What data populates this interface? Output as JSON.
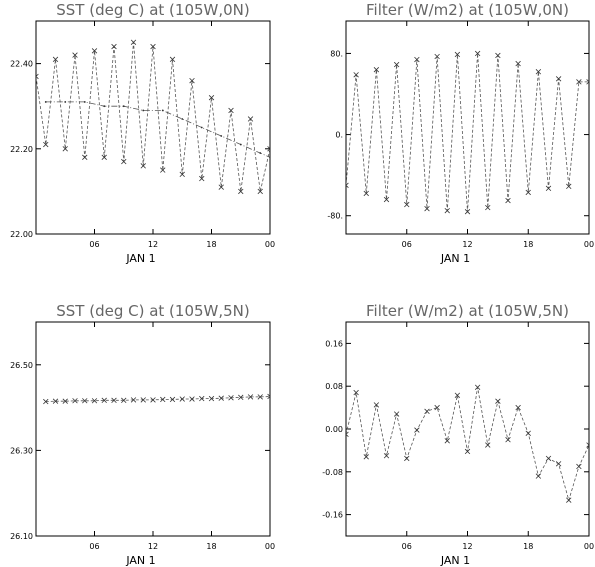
{
  "chart_data": [
    {
      "type": "line",
      "title": "SST (deg C) at (105W,0N)",
      "xlabel": "JAN  1",
      "ylabel": "",
      "x_ticks": [
        "06",
        "12",
        "18",
        "00"
      ],
      "y_ticks": [
        "22.00",
        "22.20",
        "22.40"
      ],
      "ylim": [
        22.0,
        22.5
      ],
      "xlim": [
        0,
        24
      ],
      "grid": false,
      "series": [
        {
          "style": "dashed-with-x-markers",
          "x": [
            0,
            1,
            2,
            3,
            4,
            5,
            6,
            7,
            8,
            9,
            10,
            11,
            12,
            13,
            14,
            15,
            16,
            17,
            18,
            19,
            20,
            21,
            22,
            23,
            24
          ],
          "values": [
            22.37,
            22.21,
            22.41,
            22.2,
            22.42,
            22.18,
            22.43,
            22.18,
            22.44,
            22.17,
            22.45,
            22.16,
            22.44,
            22.15,
            22.41,
            22.14,
            22.36,
            22.13,
            22.32,
            22.11,
            22.29,
            22.1,
            22.27,
            22.1,
            22.2
          ]
        },
        {
          "style": "dash-dot-with-dot-markers",
          "x": [
            1,
            3,
            5,
            7,
            9,
            11,
            13,
            15,
            17,
            19,
            21,
            23,
            24
          ],
          "values": [
            22.31,
            22.31,
            22.31,
            22.3,
            22.3,
            22.29,
            22.29,
            22.27,
            22.25,
            22.23,
            22.21,
            22.19,
            22.18
          ]
        }
      ]
    },
    {
      "type": "line",
      "title": "Filter (W/m2) at (105W,0N)",
      "xlabel": "JAN  1",
      "ylabel": "",
      "x_ticks": [
        "06",
        "12",
        "18",
        "00"
      ],
      "y_ticks": [
        "-80.",
        "0.",
        "80."
      ],
      "ylim": [
        -100,
        110
      ],
      "xlim": [
        0,
        24
      ],
      "grid": false,
      "series": [
        {
          "style": "dashed-with-x-markers",
          "x": [
            0,
            1,
            2,
            3,
            4,
            5,
            6,
            7,
            8,
            9,
            10,
            11,
            12,
            13,
            14,
            15,
            16,
            17,
            18,
            19,
            20,
            21,
            22,
            23,
            24
          ],
          "values": [
            -52,
            57,
            -60,
            62,
            -66,
            67,
            -71,
            72,
            -75,
            75,
            -77,
            77,
            -78,
            78,
            -74,
            76,
            -67,
            68,
            -59,
            60,
            -55,
            53,
            -53,
            50,
            50
          ]
        }
      ]
    },
    {
      "type": "line",
      "title": "SST (deg C) at (105W,5N)",
      "xlabel": "JAN  1",
      "ylabel": "",
      "x_ticks": [
        "06",
        "12",
        "18",
        "00"
      ],
      "y_ticks": [
        "26.10",
        "26.30",
        "26.50"
      ],
      "ylim": [
        26.1,
        26.6
      ],
      "xlim": [
        0,
        24
      ],
      "grid": false,
      "series": [
        {
          "style": "dashed-with-x-markers",
          "x": [
            1,
            2,
            3,
            4,
            5,
            6,
            7,
            8,
            9,
            10,
            11,
            12,
            13,
            14,
            15,
            16,
            17,
            18,
            19,
            20,
            21,
            22,
            23,
            24
          ],
          "values": [
            26.414,
            26.415,
            26.415,
            26.416,
            26.416,
            26.416,
            26.417,
            26.417,
            26.417,
            26.418,
            26.418,
            26.418,
            26.419,
            26.419,
            26.42,
            26.42,
            26.421,
            26.421,
            26.422,
            26.423,
            26.424,
            26.425,
            26.425,
            26.426
          ]
        }
      ]
    },
    {
      "type": "line",
      "title": "Filter (W/m2) at (105W,5N)",
      "xlabel": "JAN  1",
      "ylabel": "",
      "x_ticks": [
        "06",
        "12",
        "18",
        "00"
      ],
      "y_ticks": [
        "-0.16",
        "-0.08",
        "0.00",
        "0.08",
        "0.16"
      ],
      "ylim": [
        -0.2,
        0.2
      ],
      "xlim": [
        0,
        24
      ],
      "grid": false,
      "series": [
        {
          "style": "dashed-with-x-markers",
          "x": [
            0,
            1,
            2,
            3,
            4,
            5,
            6,
            7,
            8,
            9,
            10,
            11,
            12,
            13,
            14,
            15,
            16,
            17,
            18,
            19,
            20,
            21,
            22,
            23,
            24
          ],
          "values": [
            -0.01,
            0.068,
            -0.052,
            0.045,
            -0.05,
            0.028,
            -0.055,
            -0.002,
            0.033,
            0.04,
            -0.022,
            0.063,
            -0.042,
            0.078,
            -0.03,
            0.052,
            -0.02,
            0.04,
            -0.008,
            -0.088,
            -0.055,
            -0.065,
            -0.133,
            -0.07,
            -0.03
          ]
        }
      ]
    }
  ]
}
